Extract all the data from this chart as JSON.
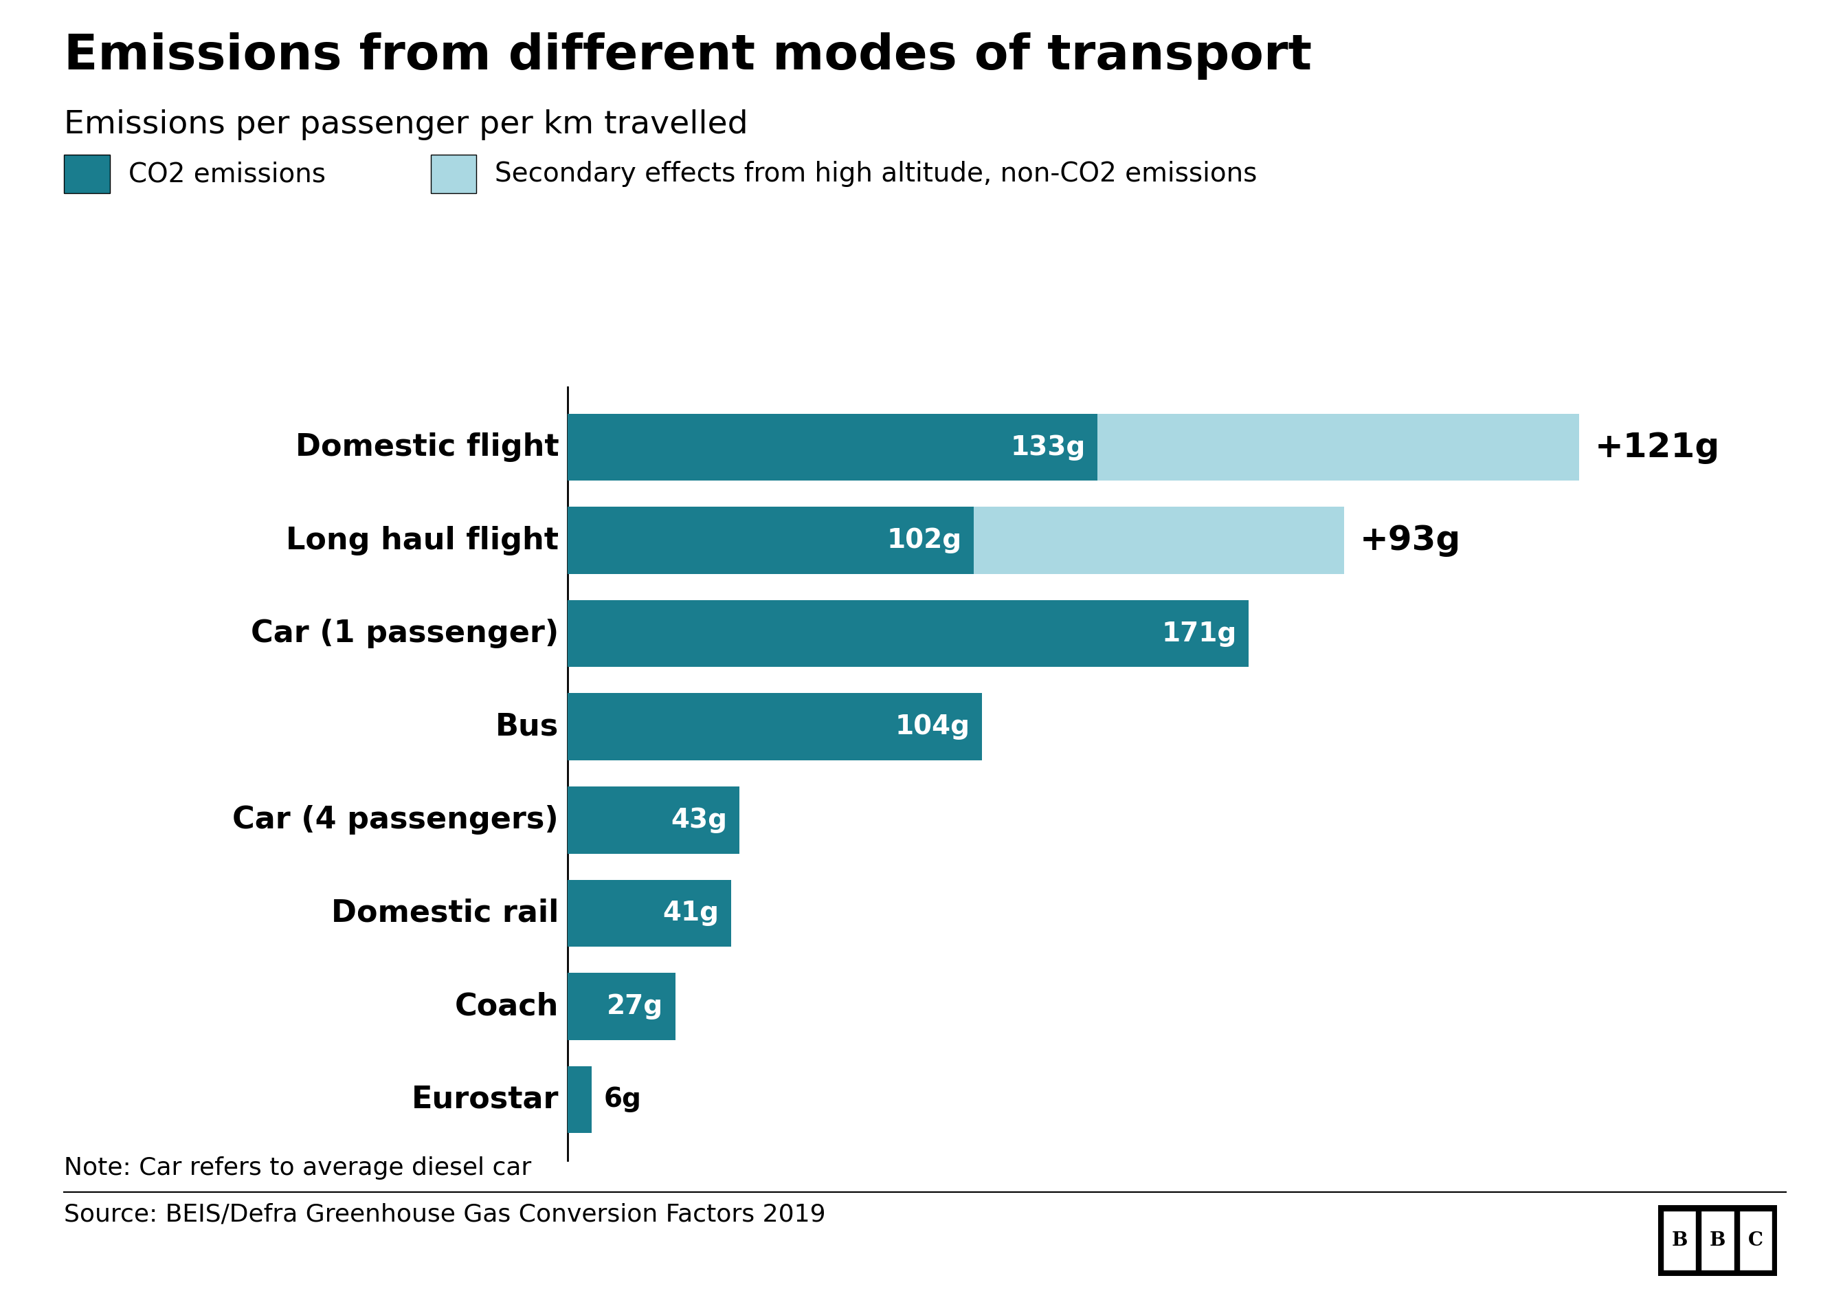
{
  "title": "Emissions from different modes of transport",
  "subtitle": "Emissions per passenger per km travelled",
  "categories": [
    "Domestic flight",
    "Long haul flight",
    "Car (1 passenger)",
    "Bus",
    "Car (4 passengers)",
    "Domestic rail",
    "Coach",
    "Eurostar"
  ],
  "co2_values": [
    133,
    102,
    171,
    104,
    43,
    41,
    27,
    6
  ],
  "secondary_values": [
    121,
    93,
    0,
    0,
    0,
    0,
    0,
    0
  ],
  "co2_color": "#1a7d8e",
  "secondary_color": "#aad8e2",
  "bar_height": 0.72,
  "note": "Note: Car refers to average diesel car",
  "source": "Source: BEIS/Defra Greenhouse Gas Conversion Factors 2019",
  "legend_co2": "CO2 emissions",
  "legend_secondary": "Secondary effects from high altitude, non-CO2 emissions",
  "background_color": "#ffffff",
  "text_color": "#000000",
  "title_fontsize": 52,
  "subtitle_fontsize": 34,
  "legend_fontsize": 28,
  "bar_label_fontsize": 28,
  "secondary_label_fontsize": 36,
  "category_fontsize": 32,
  "note_fontsize": 26,
  "source_fontsize": 26,
  "xlim_max": 290
}
